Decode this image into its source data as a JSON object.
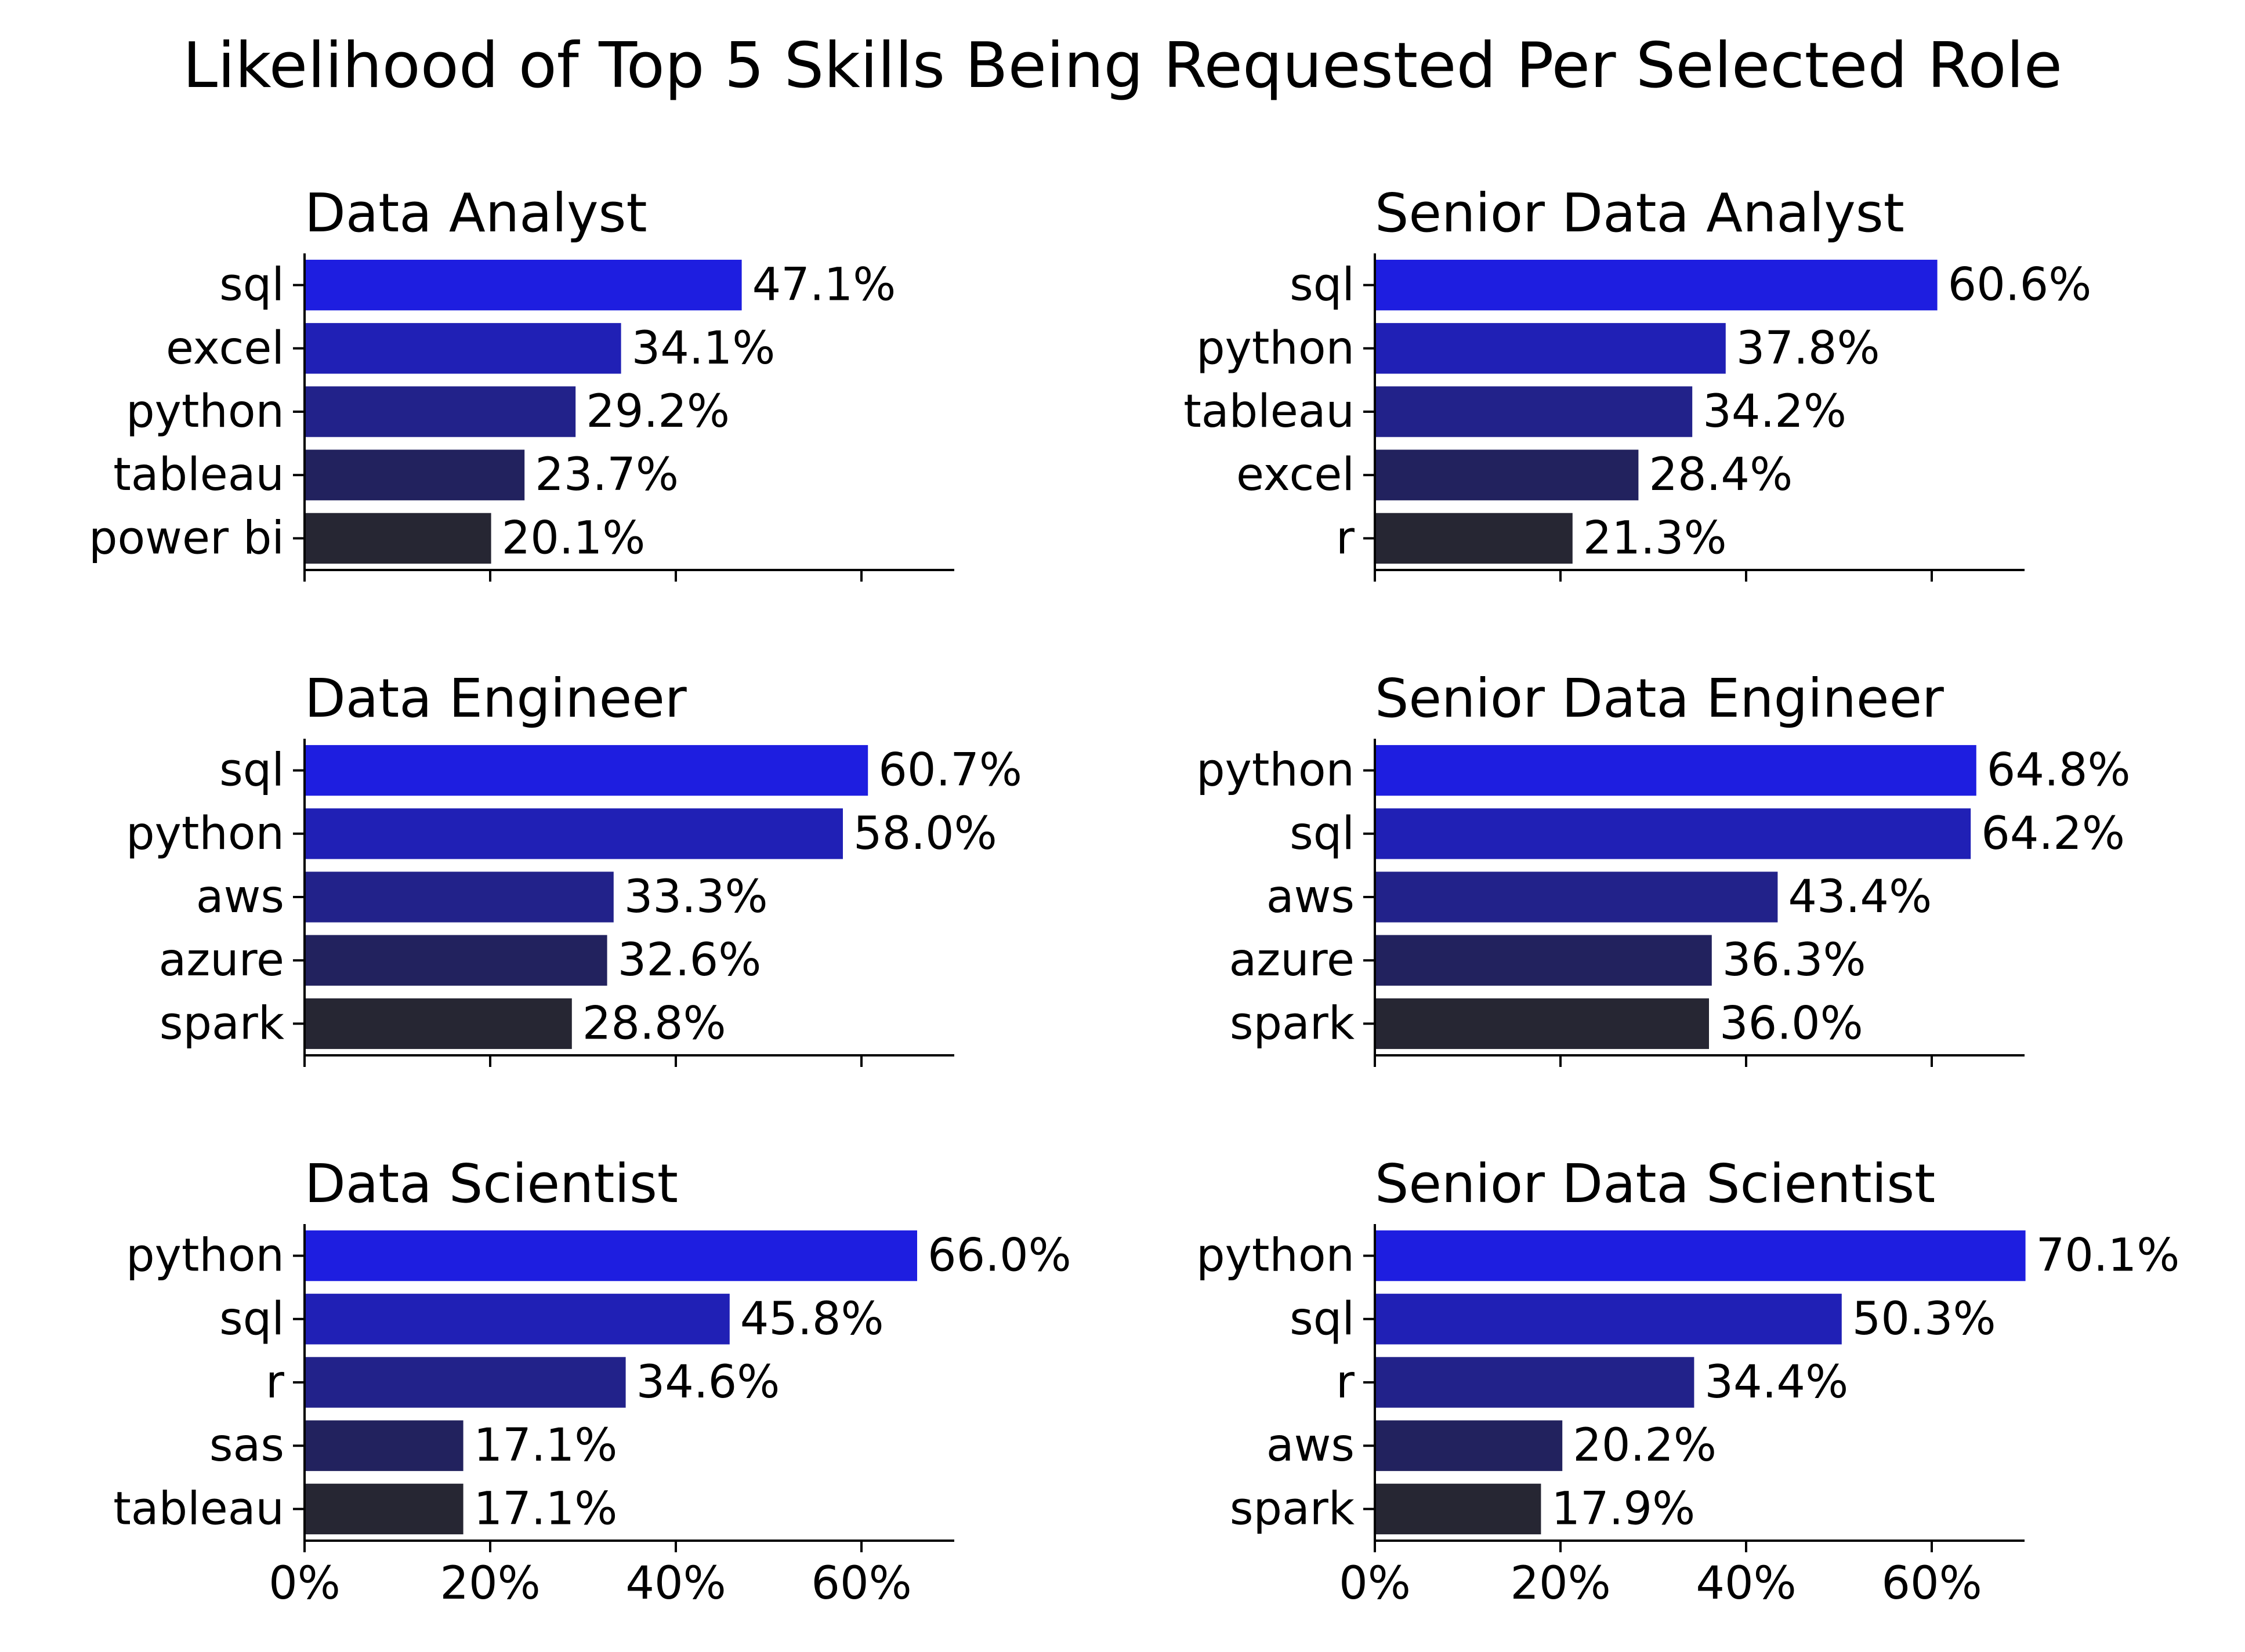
{
  "figure": {
    "title": "Likelihood of Top 5 Skills Being Requested Per Selected Role"
  },
  "colors": {
    "palette_dark_to_bright": [
      "#262633",
      "#22225e",
      "#22228a",
      "#2020b5",
      "#1e1ee0"
    ],
    "axis": "#000000",
    "text": "#000000"
  },
  "chart_data": [
    {
      "type": "bar",
      "orientation": "horizontal",
      "title": "Data Analyst",
      "categories": [
        "sql",
        "excel",
        "python",
        "tableau",
        "power bi"
      ],
      "values": [
        47.1,
        34.1,
        29.2,
        23.7,
        20.1
      ],
      "value_labels": [
        "47.1%",
        "34.1%",
        "29.2%",
        "23.7%",
        "20.1%"
      ],
      "xlim": [
        0,
        70
      ],
      "xticks": [
        "0%",
        "20%",
        "40%",
        "60%"
      ],
      "show_xtick_labels": false
    },
    {
      "type": "bar",
      "orientation": "horizontal",
      "title": "Senior Data Analyst",
      "categories": [
        "sql",
        "python",
        "tableau",
        "excel",
        "r"
      ],
      "values": [
        60.6,
        37.8,
        34.2,
        28.4,
        21.3
      ],
      "value_labels": [
        "60.6%",
        "37.8%",
        "34.2%",
        "28.4%",
        "21.3%"
      ],
      "xlim": [
        0,
        70
      ],
      "xticks": [
        "0%",
        "20%",
        "40%",
        "60%"
      ],
      "show_xtick_labels": false
    },
    {
      "type": "bar",
      "orientation": "horizontal",
      "title": "Data Engineer",
      "categories": [
        "sql",
        "python",
        "aws",
        "azure",
        "spark"
      ],
      "values": [
        60.7,
        58.0,
        33.3,
        32.6,
        28.8
      ],
      "value_labels": [
        "60.7%",
        "58.0%",
        "33.3%",
        "32.6%",
        "28.8%"
      ],
      "xlim": [
        0,
        70
      ],
      "xticks": [
        "0%",
        "20%",
        "40%",
        "60%"
      ],
      "show_xtick_labels": false
    },
    {
      "type": "bar",
      "orientation": "horizontal",
      "title": "Senior Data Engineer",
      "categories": [
        "python",
        "sql",
        "aws",
        "azure",
        "spark"
      ],
      "values": [
        64.8,
        64.2,
        43.4,
        36.3,
        36.0
      ],
      "value_labels": [
        "64.8%",
        "64.2%",
        "43.4%",
        "36.3%",
        "36.0%"
      ],
      "xlim": [
        0,
        70
      ],
      "xticks": [
        "0%",
        "20%",
        "40%",
        "60%"
      ],
      "show_xtick_labels": false
    },
    {
      "type": "bar",
      "orientation": "horizontal",
      "title": "Data Scientist",
      "categories": [
        "python",
        "sql",
        "r",
        "sas",
        "tableau"
      ],
      "values": [
        66.0,
        45.8,
        34.6,
        17.1,
        17.1
      ],
      "value_labels": [
        "66.0%",
        "45.8%",
        "34.6%",
        "17.1%",
        "17.1%"
      ],
      "xlim": [
        0,
        70
      ],
      "xticks": [
        "0%",
        "20%",
        "40%",
        "60%"
      ],
      "show_xtick_labels": true
    },
    {
      "type": "bar",
      "orientation": "horizontal",
      "title": "Senior Data Scientist",
      "categories": [
        "python",
        "sql",
        "r",
        "aws",
        "spark"
      ],
      "values": [
        70.1,
        50.3,
        34.4,
        20.2,
        17.9
      ],
      "value_labels": [
        "70.1%",
        "50.3%",
        "34.4%",
        "20.2%",
        "17.9%"
      ],
      "xlim": [
        0,
        70
      ],
      "xticks": [
        "0%",
        "20%",
        "40%",
        "60%"
      ],
      "show_xtick_labels": true
    }
  ]
}
